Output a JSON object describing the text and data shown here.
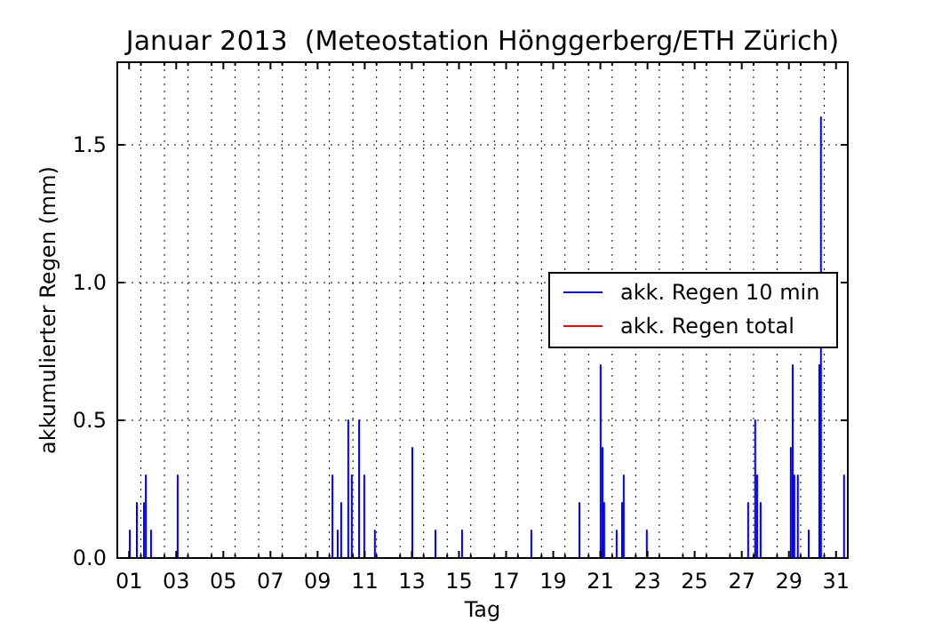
{
  "chart_data": {
    "type": "line",
    "title": "Januar 2013  (Meteostation Hönggerberg/ETH Zürich)",
    "xlabel": "Tag",
    "ylabel": "akkumulierter Regen (mm)",
    "xlim": [
      0,
      31
    ],
    "ylim": [
      0,
      1.8
    ],
    "xticks": [
      {
        "value": 0.5,
        "label": "01"
      },
      {
        "value": 1,
        "label": null
      },
      {
        "value": 2,
        "label": null
      },
      {
        "value": 2.5,
        "label": "03"
      },
      {
        "value": 3,
        "label": null
      },
      {
        "value": 4,
        "label": null
      },
      {
        "value": 4.5,
        "label": "05"
      },
      {
        "value": 5,
        "label": null
      },
      {
        "value": 6,
        "label": null
      },
      {
        "value": 6.5,
        "label": "07"
      },
      {
        "value": 7,
        "label": null
      },
      {
        "value": 8,
        "label": null
      },
      {
        "value": 8.5,
        "label": "09"
      },
      {
        "value": 9,
        "label": null
      },
      {
        "value": 10,
        "label": null
      },
      {
        "value": 10.5,
        "label": "11"
      },
      {
        "value": 11,
        "label": null
      },
      {
        "value": 12,
        "label": null
      },
      {
        "value": 12.5,
        "label": "13"
      },
      {
        "value": 13,
        "label": null
      },
      {
        "value": 14,
        "label": null
      },
      {
        "value": 14.5,
        "label": "15"
      },
      {
        "value": 15,
        "label": null
      },
      {
        "value": 16,
        "label": null
      },
      {
        "value": 16.5,
        "label": "17"
      },
      {
        "value": 17,
        "label": null
      },
      {
        "value": 18,
        "label": null
      },
      {
        "value": 18.5,
        "label": "19"
      },
      {
        "value": 19,
        "label": null
      },
      {
        "value": 20,
        "label": null
      },
      {
        "value": 20.5,
        "label": "21"
      },
      {
        "value": 21,
        "label": null
      },
      {
        "value": 22,
        "label": null
      },
      {
        "value": 22.5,
        "label": "23"
      },
      {
        "value": 23,
        "label": null
      },
      {
        "value": 24,
        "label": null
      },
      {
        "value": 24.5,
        "label": "25"
      },
      {
        "value": 25,
        "label": null
      },
      {
        "value": 26,
        "label": null
      },
      {
        "value": 26.5,
        "label": "27"
      },
      {
        "value": 27,
        "label": null
      },
      {
        "value": 28,
        "label": null
      },
      {
        "value": 28.5,
        "label": "29"
      },
      {
        "value": 29,
        "label": null
      },
      {
        "value": 30,
        "label": null
      },
      {
        "value": 30.5,
        "label": "31"
      }
    ],
    "yticks": [
      {
        "value": 0,
        "label": "0.0"
      },
      {
        "value": 0.5,
        "label": "0.5"
      },
      {
        "value": 1,
        "label": "1.0"
      },
      {
        "value": 1.5,
        "label": "1.5"
      }
    ],
    "grid": true,
    "legend": "right",
    "line_style": "solid",
    "series": [
      {
        "name": "akk. Regen 10 min",
        "color": "#0000ff",
        "x": [
          0.53,
          0.53,
          0.53,
          0.83,
          0.83,
          0.83,
          1.13,
          1.13,
          1.13,
          1.21,
          1.21,
          1.21,
          1.43,
          1.43,
          1.43,
          2.56,
          2.56,
          2.56,
          9.13,
          9.13,
          9.13,
          9.35,
          9.35,
          9.35,
          9.5,
          9.5,
          9.5,
          9.8,
          9.8,
          9.8,
          9.95,
          9.95,
          9.95,
          10.26,
          10.26,
          10.26,
          10.48,
          10.48,
          10.48,
          10.93,
          10.93,
          10.93,
          12.52,
          12.52,
          12.52,
          13.5,
          13.5,
          13.5,
          14.63,
          14.63,
          14.63,
          17.57,
          17.57,
          17.57,
          19.61,
          19.61,
          19.61,
          20.51,
          20.51,
          20.51,
          20.59,
          20.59,
          20.59,
          20.66,
          20.66,
          20.66,
          21.19,
          21.19,
          21.19,
          21.42,
          21.42,
          21.42,
          21.49,
          21.49,
          21.49,
          22.47,
          22.47,
          22.47,
          26.77,
          26.77,
          26.77,
          27.07,
          27.07,
          27.07,
          27.15,
          27.15,
          27.15,
          27.3,
          27.3,
          27.3,
          28.58,
          28.58,
          28.58,
          28.66,
          28.66,
          28.66,
          28.73,
          28.73,
          28.73,
          28.88,
          28.88,
          28.88,
          29.34,
          29.34,
          29.34,
          29.79,
          29.79,
          29.79,
          29.86,
          29.86,
          29.86,
          30.84,
          30.84,
          30.84
        ],
        "values": [
          0,
          0.1,
          0,
          0,
          0.2,
          0,
          0,
          0.2,
          0,
          0,
          0.3,
          0,
          0,
          0.1,
          0,
          0,
          0.3,
          0,
          0,
          0.3,
          0,
          0,
          0.1,
          0,
          0,
          0.2,
          0,
          0,
          0.5,
          0,
          0,
          0.3,
          0,
          0,
          0.5,
          0,
          0,
          0.3,
          0,
          0,
          0.1,
          0,
          0,
          0.4,
          0,
          0,
          0.1,
          0,
          0,
          0.1,
          0,
          0,
          0.1,
          0,
          0,
          0.2,
          0,
          0,
          0.7,
          0,
          0,
          0.4,
          0,
          0,
          0.2,
          0,
          0,
          0.1,
          0,
          0,
          0.2,
          0,
          0,
          0.3,
          0,
          0,
          0.1,
          0,
          0,
          0.2,
          0,
          0,
          0.5,
          0,
          0,
          0.3,
          0,
          0,
          0.2,
          0,
          0,
          0.4,
          0,
          0,
          0.7,
          0,
          0,
          0.3,
          0,
          0,
          0.3,
          0,
          0,
          0.1,
          0,
          0,
          0.7,
          0,
          0,
          1.6,
          0,
          0,
          0.3,
          0
        ]
      },
      {
        "name": "akk. Regen total",
        "color": "#ff0000"
      }
    ]
  }
}
